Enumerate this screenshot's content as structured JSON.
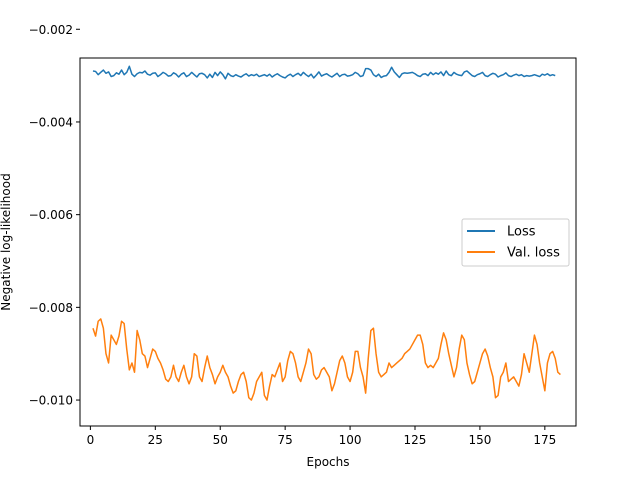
{
  "chart_data": {
    "type": "line",
    "title": "",
    "xlabel": "Epochs",
    "ylabel": "Negative log-likelihood",
    "xlim": [
      -4,
      187
    ],
    "ylim": [
      -0.01056,
      -0.00262
    ],
    "xticks": [
      0,
      25,
      50,
      75,
      100,
      125,
      150,
      175
    ],
    "xtick_labels": [
      "0",
      "25",
      "50",
      "75",
      "100",
      "125",
      "150",
      "175"
    ],
    "yticks": [
      -0.01,
      -0.008,
      -0.006,
      -0.004,
      -0.002
    ],
    "ytick_labels": [
      "−0.010",
      "−0.008",
      "−0.006",
      "−0.004",
      "−0.002"
    ],
    "grid": false,
    "legend_position": "center-right",
    "series": [
      {
        "name": "Loss",
        "color": "#1f77b4",
        "x_start": 1,
        "x_step": 1,
        "values": [
          -0.0029,
          -0.00291,
          -0.00298,
          -0.00293,
          -0.00288,
          -0.00295,
          -0.00292,
          -0.00302,
          -0.003,
          -0.00294,
          -0.00297,
          -0.00288,
          -0.00298,
          -0.00293,
          -0.0028,
          -0.00297,
          -0.00302,
          -0.00296,
          -0.00293,
          -0.00294,
          -0.0029,
          -0.00297,
          -0.00299,
          -0.00295,
          -0.00294,
          -0.00302,
          -0.00298,
          -0.00293,
          -0.00296,
          -0.00301,
          -0.003,
          -0.00294,
          -0.00297,
          -0.00303,
          -0.00297,
          -0.00294,
          -0.00302,
          -0.00299,
          -0.00293,
          -0.00298,
          -0.00303,
          -0.00296,
          -0.00295,
          -0.00298,
          -0.00305,
          -0.00297,
          -0.00304,
          -0.00293,
          -0.003,
          -0.00292,
          -0.00298,
          -0.00307,
          -0.00295,
          -0.003,
          -0.00302,
          -0.00298,
          -0.00301,
          -0.00303,
          -0.00299,
          -0.00296,
          -0.00301,
          -0.00298,
          -0.003,
          -0.00297,
          -0.00302,
          -0.003,
          -0.00298,
          -0.00301,
          -0.00297,
          -0.00303,
          -0.00299,
          -0.00296,
          -0.003,
          -0.00303,
          -0.00305,
          -0.003,
          -0.00297,
          -0.00302,
          -0.00298,
          -0.00295,
          -0.003,
          -0.00293,
          -0.00298,
          -0.00302,
          -0.00297,
          -0.00305,
          -0.00299,
          -0.00292,
          -0.00301,
          -0.00298,
          -0.00296,
          -0.003,
          -0.00303,
          -0.00299,
          -0.00295,
          -0.00302,
          -0.00298,
          -0.00297,
          -0.00301,
          -0.003,
          -0.00298,
          -0.00293,
          -0.00296,
          -0.00302,
          -0.003,
          -0.00285,
          -0.00285,
          -0.00288,
          -0.00298,
          -0.00302,
          -0.00297,
          -0.00304,
          -0.00301,
          -0.003,
          -0.00293,
          -0.00282,
          -0.00292,
          -0.00298,
          -0.00304,
          -0.00296,
          -0.00294,
          -0.00295,
          -0.00294,
          -0.00293,
          -0.00296,
          -0.003,
          -0.00302,
          -0.00297,
          -0.00296,
          -0.003,
          -0.00293,
          -0.00298,
          -0.00294,
          -0.00297,
          -0.00292,
          -0.003,
          -0.0029,
          -0.00298,
          -0.003,
          -0.00293,
          -0.00297,
          -0.00299,
          -0.003,
          -0.00292,
          -0.0029,
          -0.00295,
          -0.003,
          -0.00302,
          -0.00298,
          -0.00296,
          -0.00293,
          -0.003,
          -0.00302,
          -0.00298,
          -0.00295,
          -0.00297,
          -0.00303,
          -0.003,
          -0.00298,
          -0.00294,
          -0.003,
          -0.00302,
          -0.00299,
          -0.00297,
          -0.003,
          -0.00298,
          -0.00302,
          -0.003,
          -0.00301,
          -0.003,
          -0.00298,
          -0.003,
          -0.00302,
          -0.00297,
          -0.00299,
          -0.00296,
          -0.003,
          -0.00298,
          -0.003
        ]
      },
      {
        "name": "Val. loss",
        "color": "#ff7f0e",
        "x_start": 1,
        "x_step": 1,
        "values": [
          -0.00845,
          -0.00862,
          -0.0083,
          -0.00825,
          -0.00845,
          -0.009,
          -0.0092,
          -0.0086,
          -0.0087,
          -0.0088,
          -0.00862,
          -0.0083,
          -0.00835,
          -0.0089,
          -0.00935,
          -0.0092,
          -0.0094,
          -0.0085,
          -0.0087,
          -0.009,
          -0.00905,
          -0.0093,
          -0.0091,
          -0.0089,
          -0.00895,
          -0.0091,
          -0.0092,
          -0.00935,
          -0.00955,
          -0.0096,
          -0.0095,
          -0.00925,
          -0.0095,
          -0.0096,
          -0.0094,
          -0.00925,
          -0.0095,
          -0.00965,
          -0.0095,
          -0.009,
          -0.00905,
          -0.0095,
          -0.0096,
          -0.0093,
          -0.00905,
          -0.0093,
          -0.00945,
          -0.00965,
          -0.0095,
          -0.0094,
          -0.00925,
          -0.0094,
          -0.0095,
          -0.0097,
          -0.00985,
          -0.0098,
          -0.0096,
          -0.00945,
          -0.0094,
          -0.0096,
          -0.00995,
          -0.01,
          -0.00985,
          -0.0096,
          -0.0095,
          -0.0094,
          -0.0099,
          -0.01,
          -0.0097,
          -0.00945,
          -0.0095,
          -0.00935,
          -0.0092,
          -0.0096,
          -0.0095,
          -0.00915,
          -0.00895,
          -0.009,
          -0.0092,
          -0.0095,
          -0.0096,
          -0.0094,
          -0.0092,
          -0.0089,
          -0.009,
          -0.00945,
          -0.00955,
          -0.0095,
          -0.00935,
          -0.0093,
          -0.0094,
          -0.0095,
          -0.0098,
          -0.00965,
          -0.0094,
          -0.00915,
          -0.00905,
          -0.0092,
          -0.0095,
          -0.0096,
          -0.0094,
          -0.00895,
          -0.00895,
          -0.0093,
          -0.0095,
          -0.00985,
          -0.0091,
          -0.0085,
          -0.00845,
          -0.009,
          -0.0094,
          -0.0095,
          -0.00945,
          -0.0094,
          -0.0092,
          -0.0093,
          -0.00925,
          -0.0092,
          -0.00915,
          -0.0091,
          -0.009,
          -0.00895,
          -0.0089,
          -0.0088,
          -0.0087,
          -0.0086,
          -0.0086,
          -0.0088,
          -0.0092,
          -0.0093,
          -0.00925,
          -0.0093,
          -0.0092,
          -0.0091,
          -0.0088,
          -0.00855,
          -0.0087,
          -0.009,
          -0.00925,
          -0.0095,
          -0.0093,
          -0.0089,
          -0.0086,
          -0.0087,
          -0.0092,
          -0.00945,
          -0.00965,
          -0.0096,
          -0.0094,
          -0.0092,
          -0.009,
          -0.0089,
          -0.00905,
          -0.0093,
          -0.0095,
          -0.00995,
          -0.0099,
          -0.0095,
          -0.0094,
          -0.0092,
          -0.0096,
          -0.00955,
          -0.0095,
          -0.0096,
          -0.0097,
          -0.00945,
          -0.009,
          -0.0092,
          -0.0094,
          -0.009,
          -0.0086,
          -0.0088,
          -0.0092,
          -0.0095,
          -0.0098,
          -0.0092,
          -0.009,
          -0.00895,
          -0.0091,
          -0.0094,
          -0.00945
        ]
      }
    ]
  }
}
